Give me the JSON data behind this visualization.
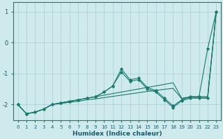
{
  "xlabel": "Humidex (Indice chaleur)",
  "background_color": "#ceeaed",
  "grid_color": "#aacdd2",
  "line_color": "#1a7a6e",
  "xlim": [
    -0.5,
    23.5
  ],
  "ylim": [
    -2.5,
    1.3
  ],
  "yticks": [
    -2,
    -1,
    0,
    1
  ],
  "x_ticks": [
    0,
    1,
    2,
    3,
    4,
    5,
    6,
    7,
    8,
    9,
    10,
    11,
    12,
    13,
    14,
    15,
    16,
    17,
    18,
    19,
    20,
    21,
    22,
    23
  ],
  "series": [
    {
      "x": [
        0,
        1,
        2,
        3,
        4,
        5,
        6,
        7,
        8,
        9,
        10,
        11,
        12,
        13,
        14,
        15,
        16,
        17,
        18,
        19,
        20,
        21,
        22,
        23
      ],
      "y": [
        -2.0,
        -2.3,
        -2.25,
        -2.15,
        -2.0,
        -1.95,
        -1.9,
        -1.85,
        -1.8,
        -1.75,
        -1.7,
        -1.65,
        -1.6,
        -1.55,
        -1.5,
        -1.45,
        -1.4,
        -1.35,
        -1.3,
        -1.8,
        -1.75,
        -1.75,
        -1.75,
        1.0
      ],
      "has_markers": false
    },
    {
      "x": [
        0,
        1,
        2,
        3,
        4,
        5,
        6,
        7,
        8,
        9,
        10,
        11,
        12,
        13,
        14,
        15,
        16,
        17,
        18,
        19,
        20,
        21,
        22,
        23
      ],
      "y": [
        -2.0,
        -2.3,
        -2.25,
        -2.15,
        -2.0,
        -1.95,
        -1.9,
        -1.85,
        -1.8,
        -1.75,
        -1.6,
        -1.4,
        -0.85,
        -1.2,
        -1.15,
        -1.45,
        -1.55,
        -1.8,
        -2.05,
        -1.85,
        -1.75,
        -1.75,
        -0.2,
        1.0
      ],
      "has_markers": true
    },
    {
      "x": [
        0,
        1,
        2,
        3,
        4,
        5,
        6,
        7,
        8,
        9,
        10,
        11,
        12,
        13,
        14,
        15,
        16,
        17,
        18,
        19,
        20,
        21,
        22,
        23
      ],
      "y": [
        -2.0,
        -2.3,
        -2.25,
        -2.15,
        -2.0,
        -1.95,
        -1.9,
        -1.85,
        -1.8,
        -1.75,
        -1.6,
        -1.4,
        -0.95,
        -1.25,
        -1.2,
        -1.5,
        -1.6,
        -1.85,
        -2.1,
        -1.88,
        -1.8,
        -1.8,
        -1.8,
        1.0
      ],
      "has_markers": true
    },
    {
      "x": [
        0,
        1,
        2,
        3,
        4,
        5,
        6,
        7,
        8,
        9,
        10,
        11,
        12,
        13,
        14,
        15,
        16,
        17,
        18,
        19,
        20,
        21,
        22,
        23
      ],
      "y": [
        -2.0,
        -2.3,
        -2.25,
        -2.15,
        -2.0,
        -1.97,
        -1.93,
        -1.9,
        -1.85,
        -1.82,
        -1.78,
        -1.74,
        -1.7,
        -1.66,
        -1.62,
        -1.58,
        -1.55,
        -1.51,
        -1.48,
        -1.82,
        -1.77,
        -1.77,
        -1.77,
        1.0
      ],
      "has_markers": false
    }
  ]
}
